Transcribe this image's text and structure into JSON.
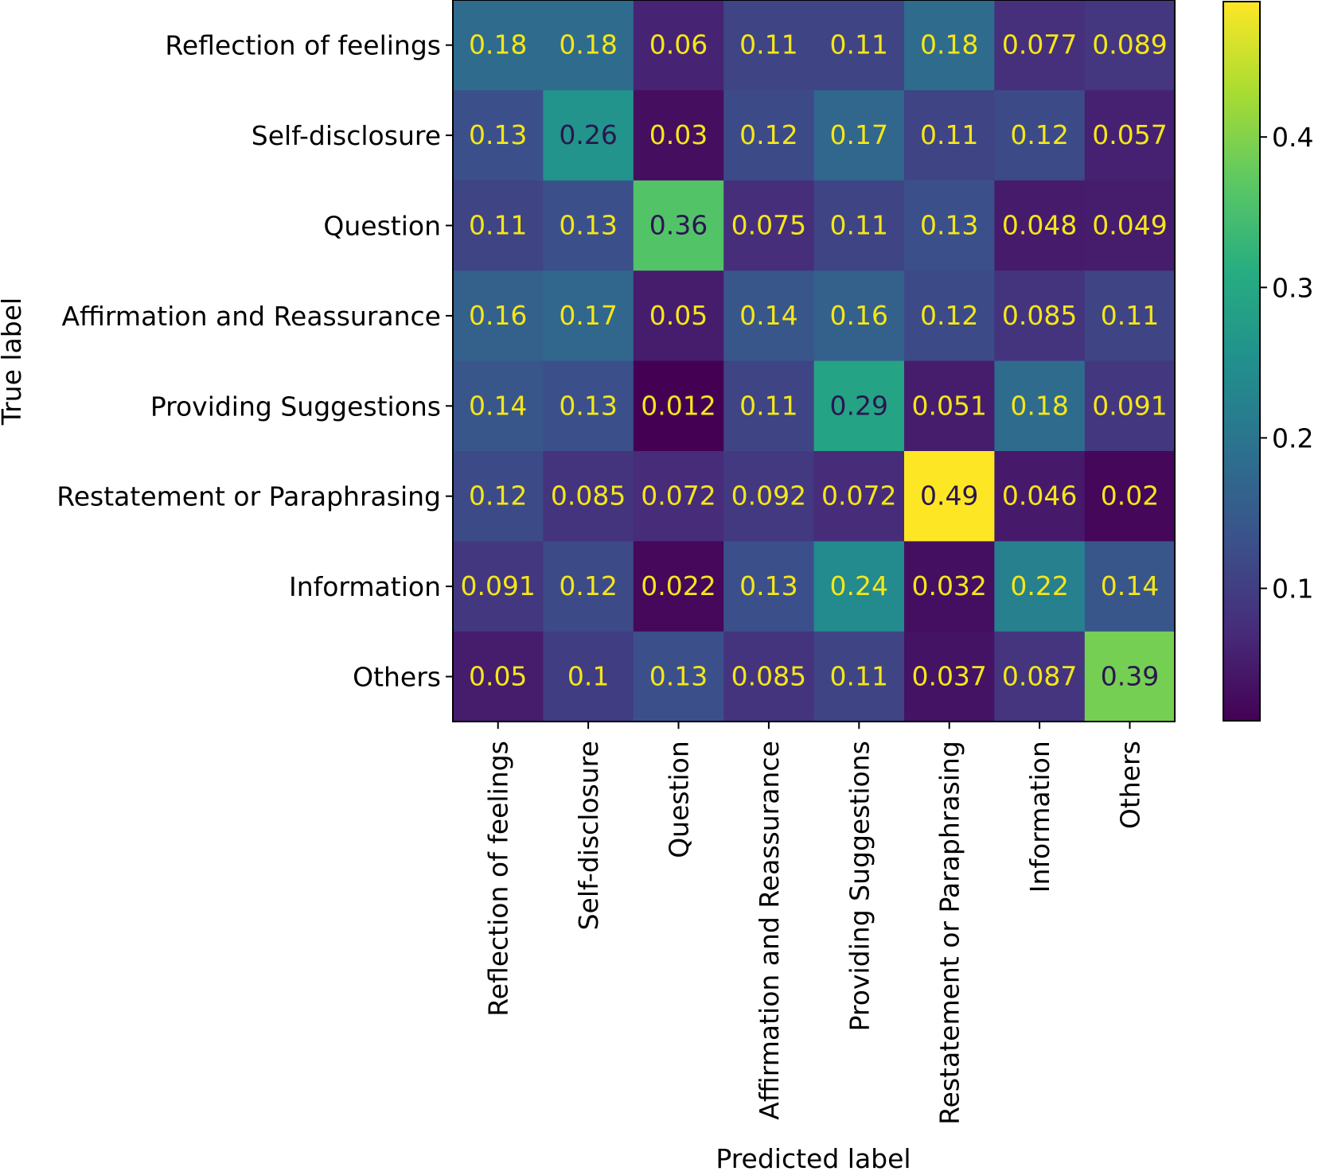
{
  "chart_data": {
    "type": "heatmap",
    "title": "",
    "xlabel": "Predicted label",
    "ylabel": "True label",
    "x_categories": [
      "Reflection of feelings",
      "Self-disclosure",
      "Question",
      "Affirmation and Reassurance",
      "Providing Suggestions",
      "Restatement or Paraphrasing",
      "Information",
      "Others"
    ],
    "y_categories": [
      "Reflection of feelings",
      "Self-disclosure",
      "Question",
      "Affirmation and Reassurance",
      "Providing Suggestions",
      "Restatement or Paraphrasing",
      "Information",
      "Others"
    ],
    "values": [
      [
        0.18,
        0.18,
        0.06,
        0.11,
        0.11,
        0.18,
        0.077,
        0.089
      ],
      [
        0.13,
        0.26,
        0.03,
        0.12,
        0.17,
        0.11,
        0.12,
        0.057
      ],
      [
        0.11,
        0.13,
        0.36,
        0.075,
        0.11,
        0.13,
        0.048,
        0.049
      ],
      [
        0.16,
        0.17,
        0.05,
        0.14,
        0.16,
        0.12,
        0.085,
        0.11
      ],
      [
        0.14,
        0.13,
        0.012,
        0.11,
        0.29,
        0.051,
        0.18,
        0.091
      ],
      [
        0.12,
        0.085,
        0.072,
        0.092,
        0.072,
        0.49,
        0.046,
        0.02
      ],
      [
        0.091,
        0.12,
        0.022,
        0.13,
        0.24,
        0.032,
        0.22,
        0.14
      ],
      [
        0.05,
        0.1,
        0.13,
        0.085,
        0.11,
        0.037,
        0.087,
        0.39
      ]
    ],
    "value_labels": [
      [
        "0.18",
        "0.18",
        "0.06",
        "0.11",
        "0.11",
        "0.18",
        "0.077",
        "0.089"
      ],
      [
        "0.13",
        "0.26",
        "0.03",
        "0.12",
        "0.17",
        "0.11",
        "0.12",
        "0.057"
      ],
      [
        "0.11",
        "0.13",
        "0.36",
        "0.075",
        "0.11",
        "0.13",
        "0.048",
        "0.049"
      ],
      [
        "0.16",
        "0.17",
        "0.05",
        "0.14",
        "0.16",
        "0.12",
        "0.085",
        "0.11"
      ],
      [
        "0.14",
        "0.13",
        "0.012",
        "0.11",
        "0.29",
        "0.051",
        "0.18",
        "0.091"
      ],
      [
        "0.12",
        "0.085",
        "0.072",
        "0.092",
        "0.072",
        "0.49",
        "0.046",
        "0.02"
      ],
      [
        "0.091",
        "0.12",
        "0.022",
        "0.13",
        "0.24",
        "0.032",
        "0.22",
        "0.14"
      ],
      [
        "0.05",
        "0.1",
        "0.13",
        "0.085",
        "0.11",
        "0.037",
        "0.087",
        "0.39"
      ]
    ],
    "colormap": "viridis",
    "vmin": 0.012,
    "vmax": 0.49,
    "colorbar_ticks": [
      0.1,
      0.2,
      0.3,
      0.4
    ],
    "colorbar_tick_labels": [
      "0.1",
      "0.2",
      "0.3",
      "0.4"
    ],
    "text_color_light": "#f5e61a",
    "text_color_dark": "#2a1650"
  }
}
